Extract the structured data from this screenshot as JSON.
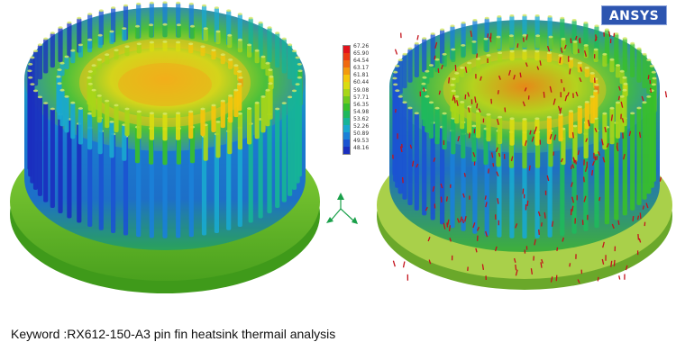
{
  "brand": {
    "logo_text": "ANSYS",
    "color": "#2d55b0"
  },
  "legend": {
    "values": [
      "67.26",
      "65.90",
      "64.54",
      "63.17",
      "61.81",
      "60.44",
      "59.08",
      "57.71",
      "56.35",
      "54.98",
      "53.62",
      "52.26",
      "50.89",
      "49.53",
      "48.16"
    ],
    "colors": [
      "#e3121b",
      "#ec3a13",
      "#f06a10",
      "#f39a0e",
      "#f4c60c",
      "#d9dc10",
      "#a7d618",
      "#6fca1f",
      "#38bf2a",
      "#1fb85c",
      "#16b497",
      "#19a8cf",
      "#1a80d8",
      "#1b54d1",
      "#1a2fbf"
    ]
  },
  "caption": {
    "text": "Keyword :RX612-150-A3 pin fin heatsink thermail analysis"
  },
  "views": {
    "left": "temperature contour",
    "right": "heat flux vectors"
  }
}
